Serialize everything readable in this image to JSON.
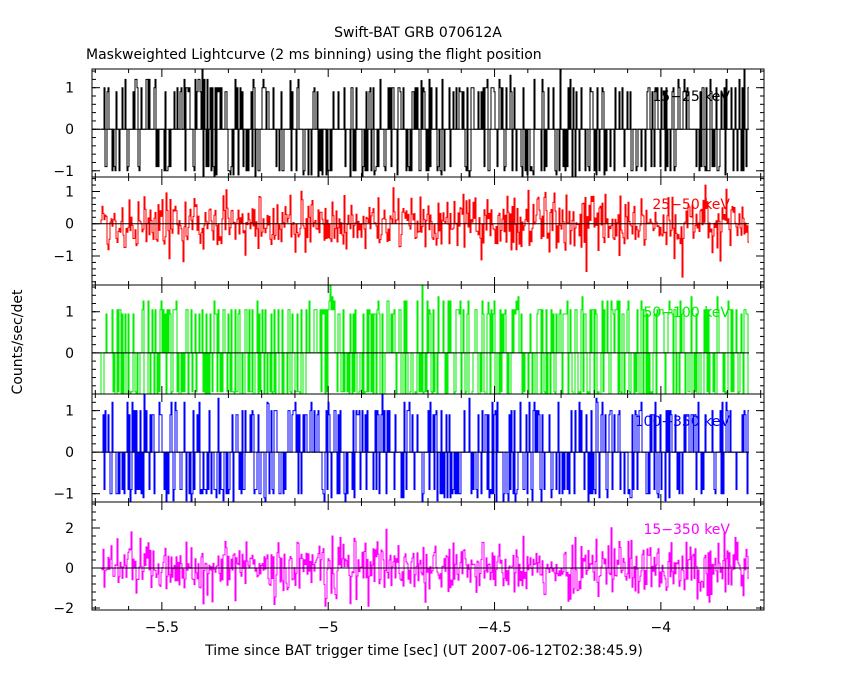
{
  "chart_data": {
    "type": "line",
    "title": "Swift-BAT GRB 070612A",
    "subtitle": "Maskweighted Lightcurve (2 ms binning) using the flight position",
    "xlabel": "Time since BAT trigger time [sec] (UT 2007-06-12T02:38:45.9)",
    "ylabel": "Counts/sec/det",
    "xlim": [
      -5.71,
      -3.69
    ],
    "xticks": [
      -5.5,
      -5,
      -4.5,
      -4
    ],
    "xtick_labels": [
      "−5.5",
      "−5",
      "−4.5",
      "−4"
    ],
    "bin_width_sec": 0.002,
    "grid": false,
    "panels": [
      {
        "name": "15-25 keV",
        "label": "15−25 keV",
        "color": "#000000",
        "ylim": [
          -1.15,
          1.45
        ],
        "yticks": [
          1,
          0,
          -1
        ],
        "ytick_labels": [
          "1",
          "0",
          "−1"
        ],
        "amplitude": 1.0,
        "density": 0.55,
        "discrete": true
      },
      {
        "name": "25-50 keV",
        "label": "25−50 keV",
        "color": "#ff0000",
        "ylim": [
          -1.9,
          1.45
        ],
        "yticks": [
          1,
          0,
          -1
        ],
        "ytick_labels": [
          "1",
          "0",
          "−1"
        ],
        "amplitude": 1.0,
        "density": 0.6,
        "discrete": false
      },
      {
        "name": "50-100 keV",
        "label": "50−100 keV",
        "color": "#00ee00",
        "ylim": [
          -1.0,
          1.65
        ],
        "yticks": [
          1,
          0
        ],
        "ytick_labels": [
          "1",
          "0"
        ],
        "amplitude": 1.05,
        "density": 0.7,
        "discrete": true
      },
      {
        "name": "100-350 keV",
        "label": "100−350 keV",
        "color": "#0000ff",
        "ylim": [
          -1.2,
          1.4
        ],
        "yticks": [
          1,
          0,
          -1
        ],
        "ytick_labels": [
          "1",
          "0",
          "−1"
        ],
        "amplitude": 1.0,
        "density": 0.55,
        "discrete": true
      },
      {
        "name": "15-350 keV",
        "label": "15−350 keV",
        "color": "#ff00ff",
        "ylim": [
          -2.1,
          3.3
        ],
        "yticks": [
          2,
          0,
          -2
        ],
        "ytick_labels": [
          "2",
          "0",
          "−2"
        ],
        "amplitude": 1.0,
        "density": 1.0,
        "discrete": false
      }
    ]
  }
}
